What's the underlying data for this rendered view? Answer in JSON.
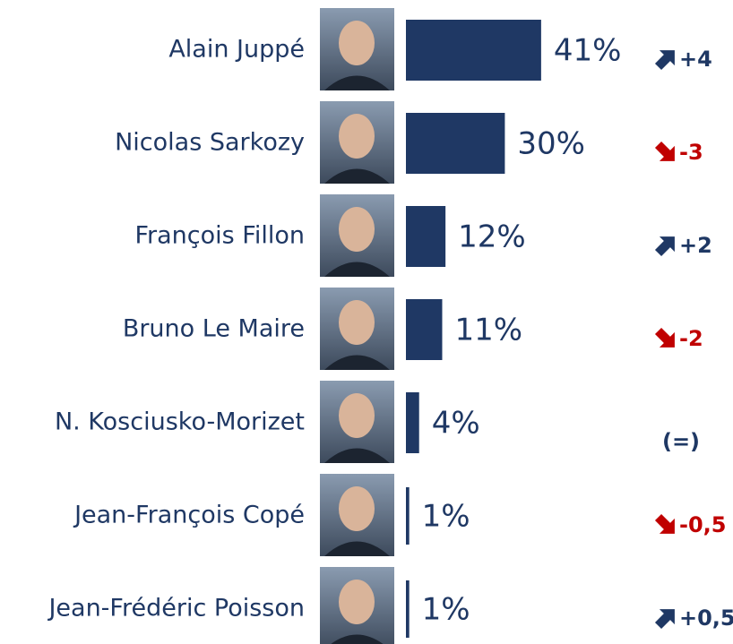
{
  "chart_data": {
    "type": "bar",
    "categories": [
      "Alain Juppé",
      "Nicolas Sarkozy",
      "François Fillon",
      "Bruno Le Maire",
      "N. Kosciusko-Morizet",
      "Jean-François Copé",
      "Jean-Frédéric Poisson"
    ],
    "values": [
      41,
      30,
      12,
      11,
      4,
      1,
      1
    ],
    "value_labels": [
      "41%",
      "30%",
      "12%",
      "11%",
      "4%",
      "1%",
      "1%"
    ],
    "changes": [
      "+4",
      "-3",
      "+2",
      "-2",
      "(=)",
      "-0,5",
      "+0,5"
    ],
    "color": "#1f3864",
    "up_color": "#1f3864",
    "down_color": "#c00000"
  }
}
